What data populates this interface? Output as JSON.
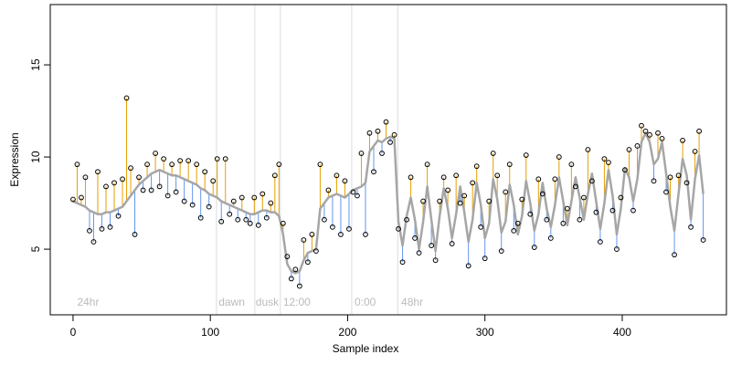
{
  "chart_data": {
    "type": "scatter",
    "xlabel": "Sample index",
    "ylabel": "Expression",
    "xlim": [
      -16.6,
      475.9
    ],
    "ylim": [
      1.44,
      18.27
    ],
    "xticks": [
      0,
      100,
      200,
      300,
      400
    ],
    "yticks": [
      5,
      10,
      15
    ],
    "x": [
      0,
      3,
      6,
      9,
      12,
      15,
      18,
      21,
      24,
      27,
      30,
      33,
      36,
      39,
      42,
      45,
      48,
      51,
      54,
      57,
      60,
      63,
      66,
      69,
      72,
      75,
      78,
      81,
      84,
      87,
      90,
      93,
      96,
      99,
      102,
      105,
      108,
      111,
      114,
      117,
      120,
      123,
      126,
      129,
      132,
      135,
      138,
      141,
      144,
      147,
      150,
      153,
      156,
      159,
      162,
      165,
      168,
      171,
      174,
      177,
      180,
      183,
      186,
      189,
      192,
      195,
      198,
      201,
      204,
      207,
      210,
      213,
      216,
      219,
      222,
      225,
      228,
      231,
      234,
      237,
      240,
      243,
      246,
      249,
      252,
      255,
      258,
      261,
      264,
      267,
      270,
      273,
      276,
      279,
      282,
      285,
      288,
      291,
      294,
      297,
      300,
      303,
      306,
      309,
      312,
      315,
      318,
      321,
      324,
      327,
      330,
      333,
      336,
      339,
      342,
      345,
      348,
      351,
      354,
      357,
      360,
      363,
      366,
      369,
      372,
      375,
      378,
      381,
      384,
      387,
      390,
      393,
      396,
      399,
      402,
      405,
      408,
      411,
      414,
      417,
      420,
      423,
      426,
      429,
      432,
      435,
      438,
      441,
      444,
      447,
      450,
      453,
      456,
      459
    ],
    "observed": {
      "color": "#000000",
      "values": [
        7.7,
        9.6,
        7.8,
        8.9,
        6.0,
        5.4,
        9.2,
        6.1,
        8.4,
        6.2,
        8.6,
        6.8,
        8.8,
        13.2,
        9.4,
        5.8,
        8.9,
        8.2,
        9.6,
        8.2,
        10.2,
        8.4,
        9.9,
        7.9,
        9.6,
        8.1,
        9.8,
        7.6,
        9.8,
        7.4,
        9.6,
        6.7,
        9.2,
        7.3,
        8.7,
        9.9,
        6.5,
        9.9,
        6.9,
        7.6,
        6.6,
        7.8,
        6.6,
        6.4,
        7.8,
        6.3,
        8.0,
        6.7,
        7.5,
        9.0,
        9.6,
        6.4,
        4.6,
        3.4,
        3.9,
        3.0,
        5.5,
        4.3,
        5.8,
        4.9,
        9.6,
        6.6,
        8.2,
        6.2,
        9.0,
        5.8,
        8.7,
        6.1,
        8.1,
        7.9,
        10.2,
        5.8,
        11.3,
        9.2,
        11.4,
        10.2,
        11.9,
        10.8,
        11.2,
        6.1,
        4.3,
        6.6,
        8.9,
        5.6,
        4.8,
        7.6,
        9.6,
        5.2,
        4.4,
        7.6,
        8.9,
        8.2,
        5.3,
        9.0,
        7.5,
        7.9,
        4.1,
        8.6,
        9.5,
        6.2,
        4.5,
        7.6,
        10.2,
        9.0,
        4.9,
        8.1,
        9.6,
        6.0,
        6.4,
        7.7,
        10.1,
        6.9,
        5.1,
        8.8,
        8.0,
        6.6,
        5.6,
        8.8,
        10.0,
        6.4,
        7.2,
        9.6,
        8.4,
        6.6,
        7.8,
        10.4,
        8.7,
        7.0,
        5.4,
        9.9,
        9.7,
        7.1,
        5.0,
        7.8,
        9.3,
        10.4,
        7.1,
        10.6,
        11.7,
        11.4,
        11.2,
        8.7,
        11.3,
        11.0,
        8.1,
        8.9,
        4.7,
        9.0,
        10.9,
        8.6,
        6.2,
        10.3,
        11.4,
        5.5
      ]
    },
    "fitted": {
      "color": "#a6a6a6",
      "values": [
        7.6,
        7.5,
        7.4,
        7.3,
        7.1,
        7.0,
        6.9,
        6.9,
        7.0,
        7.0,
        7.1,
        7.2,
        7.3,
        7.6,
        7.9,
        8.2,
        8.5,
        8.7,
        8.9,
        9.1,
        9.2,
        9.3,
        9.2,
        9.1,
        9.0,
        9.0,
        8.9,
        8.8,
        8.7,
        8.6,
        8.5,
        8.3,
        8.2,
        8.0,
        7.9,
        7.8,
        7.6,
        7.5,
        7.4,
        7.3,
        7.2,
        7.1,
        7.0,
        6.9,
        6.9,
        7.0,
        7.1,
        7.1,
        7.0,
        7.0,
        6.8,
        5.8,
        4.2,
        3.8,
        3.7,
        3.8,
        4.4,
        4.8,
        4.9,
        5.0,
        7.2,
        7.5,
        7.8,
        7.9,
        8.0,
        7.9,
        7.8,
        8.0,
        8.2,
        8.3,
        8.4,
        8.6,
        10.3,
        10.6,
        10.9,
        10.8,
        11.0,
        11.1,
        11.0,
        6.5,
        5.2,
        6.8,
        7.8,
        6.6,
        5.0,
        6.5,
        8.4,
        6.6,
        4.9,
        6.8,
        8.3,
        7.2,
        5.6,
        6.9,
        8.4,
        7.0,
        5.4,
        6.6,
        8.6,
        7.4,
        5.6,
        6.4,
        8.8,
        7.7,
        5.9,
        6.5,
        8.5,
        7.4,
        5.8,
        6.8,
        8.7,
        7.5,
        6.0,
        6.9,
        8.6,
        7.2,
        6.2,
        7.4,
        8.9,
        7.6,
        6.3,
        7.6,
        8.9,
        7.8,
        6.6,
        8.0,
        9.1,
        7.6,
        6.1,
        7.5,
        9.3,
        7.9,
        5.8,
        7.2,
        9.4,
        8.9,
        7.6,
        8.8,
        10.8,
        11.3,
        10.8,
        9.6,
        9.9,
        10.8,
        9.1,
        7.3,
        6.0,
        8.0,
        9.9,
        9.0,
        6.6,
        8.8,
        10.1,
        8.0
      ]
    },
    "residual_colors": {
      "above": "#e69f00",
      "below": "#6495ed"
    },
    "vlines": {
      "color": "#dddddd",
      "values": [
        104.5,
        132.4,
        151,
        203,
        236.5
      ]
    },
    "annotations": [
      {
        "x": 3,
        "y": 2.1,
        "label": "24hr"
      },
      {
        "x": 106,
        "y": 2.1,
        "label": "dawn"
      },
      {
        "x": 133,
        "y": 2.1,
        "label": "dusk"
      },
      {
        "x": 153,
        "y": 2.1,
        "label": "12:00"
      },
      {
        "x": 205,
        "y": 2.1,
        "label": "0:00"
      },
      {
        "x": 239,
        "y": 2.1,
        "label": "48hr"
      }
    ]
  }
}
